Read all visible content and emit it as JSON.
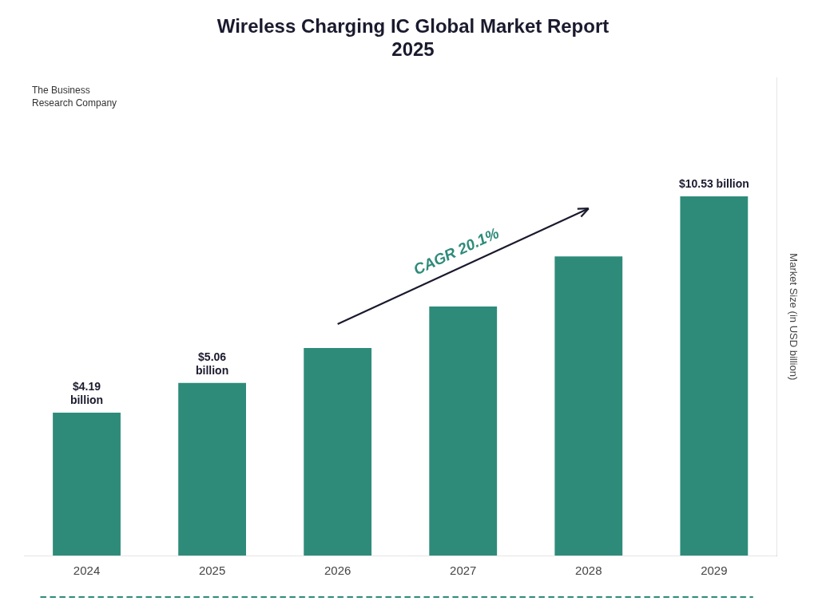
{
  "chart_data": {
    "type": "bar",
    "title": "Wireless Charging IC Global Market Report\n2025",
    "categories": [
      "2024",
      "2025",
      "2026",
      "2027",
      "2028",
      "2029"
    ],
    "values": [
      4.19,
      5.06,
      6.08,
      7.3,
      8.77,
      10.53
    ],
    "color": "#2E8B7A",
    "ylabel": "Market Size (in USD billion)",
    "ylim": [
      0,
      14
    ],
    "grid": false,
    "tick_labels": "x",
    "data_labels": true,
    "value_labels": [
      "$4.19\nbillion",
      "$5.06\nbillion",
      null,
      null,
      null,
      "$10.53 billion"
    ],
    "annotation": "CAGR 20.1%",
    "logo_text": "The Business\nResearch Company"
  }
}
